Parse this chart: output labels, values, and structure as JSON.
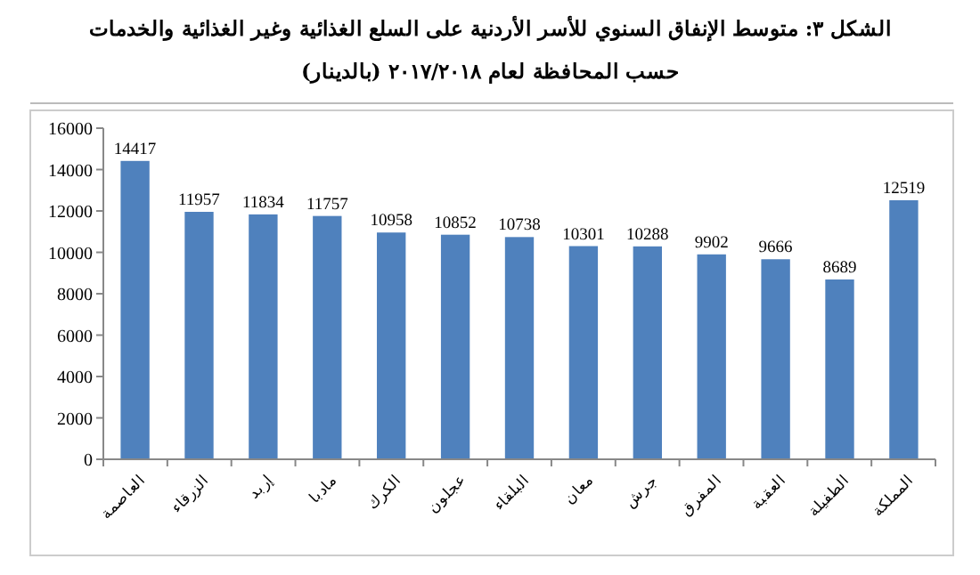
{
  "chart_data": {
    "type": "bar",
    "title": "الشكل ٣: متوسط الإنفاق السنوي للأسر الأردنية على السلع الغذائية وغير الغذائية والخدمات",
    "subtitle": "حسب المحافظة لعام ٢٠١٧/٢٠١٨ (بالدينار)",
    "categories": [
      "العاصمة",
      "الزرقاء",
      "إربد",
      "مادبا",
      "الكرك",
      "عجلون",
      "البلقاء",
      "معان",
      "جرش",
      "المفرق",
      "العقبة",
      "الطفيلة",
      "المملكة"
    ],
    "values": [
      14417,
      11957,
      11834,
      11757,
      10958,
      10852,
      10738,
      10301,
      10288,
      9902,
      9666,
      8689,
      12519
    ],
    "color": "#4f81bd",
    "ylim": [
      0,
      16000
    ],
    "yticks": [
      0,
      2000,
      4000,
      6000,
      8000,
      10000,
      12000,
      14000,
      16000
    ],
    "grid": false,
    "data_labels": true
  }
}
